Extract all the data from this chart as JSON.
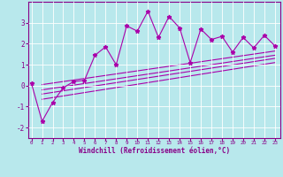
{
  "title": "",
  "xlabel": "Windchill (Refroidissement éolien,°C)",
  "x_values": [
    0,
    1,
    2,
    3,
    4,
    5,
    6,
    7,
    8,
    9,
    10,
    11,
    12,
    13,
    14,
    15,
    16,
    17,
    18,
    19,
    20,
    21,
    22,
    23
  ],
  "y_scatter": [
    0.1,
    -1.7,
    -0.8,
    -0.1,
    0.2,
    0.25,
    1.45,
    1.85,
    1.0,
    2.85,
    2.6,
    3.55,
    2.3,
    3.3,
    2.75,
    1.1,
    2.7,
    2.2,
    2.35,
    1.6,
    2.3,
    1.8,
    2.4,
    1.9
  ],
  "regression_lines": [
    {
      "x0": 1,
      "y0": 0.05,
      "x1": 23,
      "y1": 1.65
    },
    {
      "x0": 1,
      "y0": -0.2,
      "x1": 23,
      "y1": 1.45
    },
    {
      "x0": 1,
      "y0": -0.4,
      "x1": 23,
      "y1": 1.3
    },
    {
      "x0": 1,
      "y0": -0.65,
      "x1": 23,
      "y1": 1.1
    }
  ],
  "line_color": "#aa00aa",
  "bg_color": "#b8e8ec",
  "grid_color": "#d0ecf0",
  "ylim": [
    -2.5,
    4.0
  ],
  "xlim": [
    -0.3,
    23.5
  ],
  "yticks": [
    -2,
    -1,
    0,
    1,
    2,
    3
  ],
  "xticks": [
    0,
    1,
    2,
    3,
    4,
    5,
    6,
    7,
    8,
    9,
    10,
    11,
    12,
    13,
    14,
    15,
    16,
    17,
    18,
    19,
    20,
    21,
    22,
    23
  ]
}
